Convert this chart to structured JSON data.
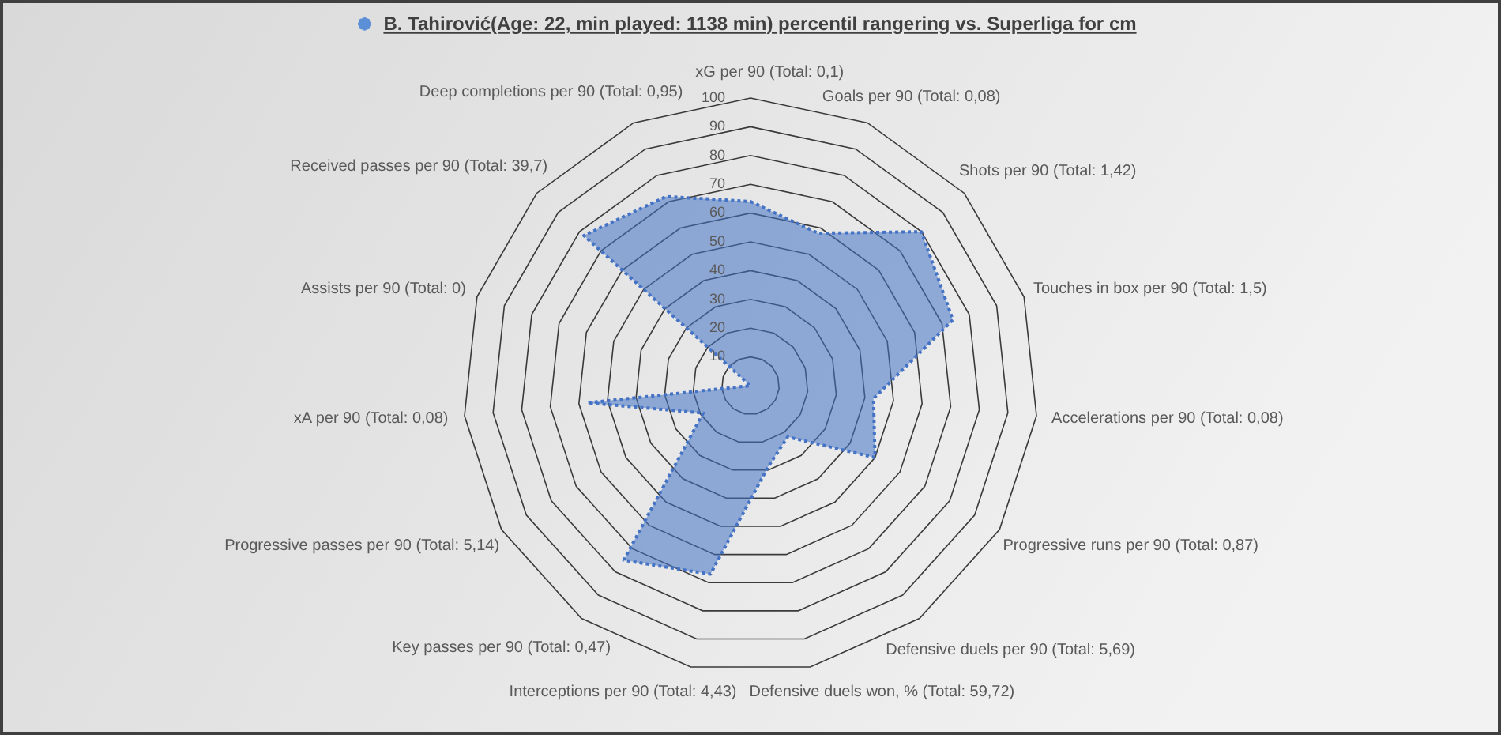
{
  "chart_data": {
    "type": "radar",
    "title": "B. Tahirović(Age: 22, min played: 1138 min) percentil rangering vs. Superliga for cm",
    "categories": [
      "xG per 90 (Total: 0,1)",
      "Goals per 90 (Total: 0,08)",
      "Shots per 90 (Total: 1,42)",
      "Touches in box per 90 (Total: 1,5)",
      "Accelerations per 90 (Total: 0,08)",
      "Progressive runs per 90 (Total: 0,87)",
      "Defensive duels per 90 (Total: 5,69)",
      "Defensive duels won, % (Total: 59,72)",
      "Interceptions per 90 (Total: 4,43)",
      "Key passes per 90 (Total: 0,47)",
      "Progressive passes per 90 (Total: 5,14)",
      "xA per 90 (Total: 0,08)",
      "Assists per 90 (Total: 0)",
      "Received passes per 90 (Total: 39,7)",
      "Deep completions per 90 (Total: 0,95)"
    ],
    "series": [
      {
        "color": "#4472c4",
        "values": [
          64,
          58,
          80,
          74,
          43,
          50,
          22,
          29,
          67,
          75,
          19,
          57,
          0,
          78,
          72
        ]
      }
    ],
    "ylim": [
      0,
      100
    ],
    "yticks": [
      10,
      20,
      30,
      40,
      50,
      60,
      70,
      80,
      90,
      100
    ],
    "grid": true,
    "line_style": "dotted"
  }
}
